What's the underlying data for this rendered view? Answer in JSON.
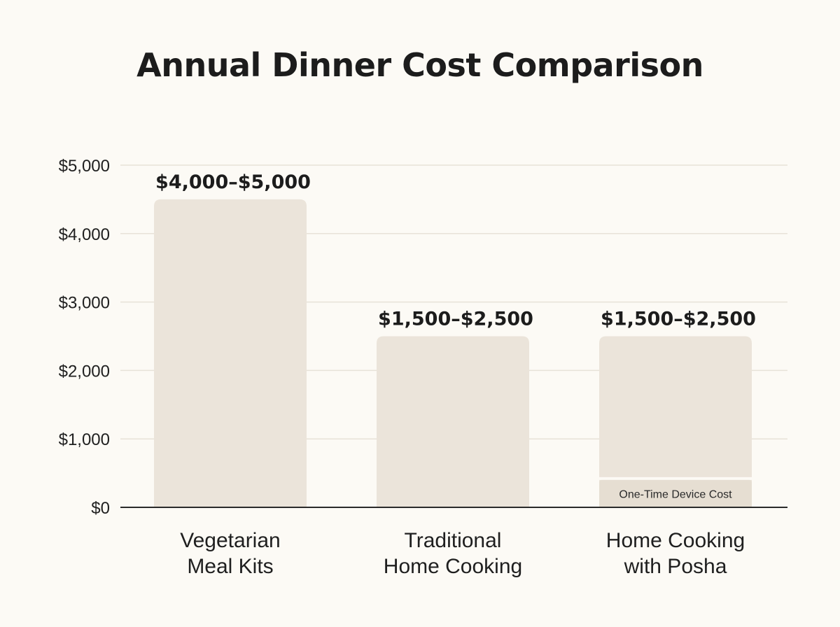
{
  "chart_data": {
    "type": "bar",
    "title": "Annual Dinner Cost Comparison",
    "xlabel": "",
    "ylabel": "",
    "ylim": [
      0,
      5000
    ],
    "yticks": [
      0,
      1000,
      2000,
      3000,
      4000,
      5000
    ],
    "ytick_labels": [
      "$0",
      "$1,000",
      "$2,000",
      "$3,000",
      "$4,000",
      "$5,000"
    ],
    "grid": true,
    "categories": [
      [
        "Vegetarian",
        "Meal Kits"
      ],
      [
        "Traditional",
        "Home Cooking"
      ],
      [
        "Home Cooking",
        "with Posha"
      ]
    ],
    "values": [
      4500,
      2500,
      2500
    ],
    "value_labels": [
      "$4,000–$5,000",
      "$1,500–$2,500",
      "$1,500–$2,500"
    ],
    "segments": [
      {
        "category_index": 2,
        "value": 400,
        "label": "One-Time Device Cost"
      }
    ],
    "colors": {
      "bar": "#ebe4da",
      "segment": "#e6ded2",
      "grid": "#e7e2d8",
      "axis": "#2a2a2a",
      "background": "#fcfaf5"
    }
  }
}
